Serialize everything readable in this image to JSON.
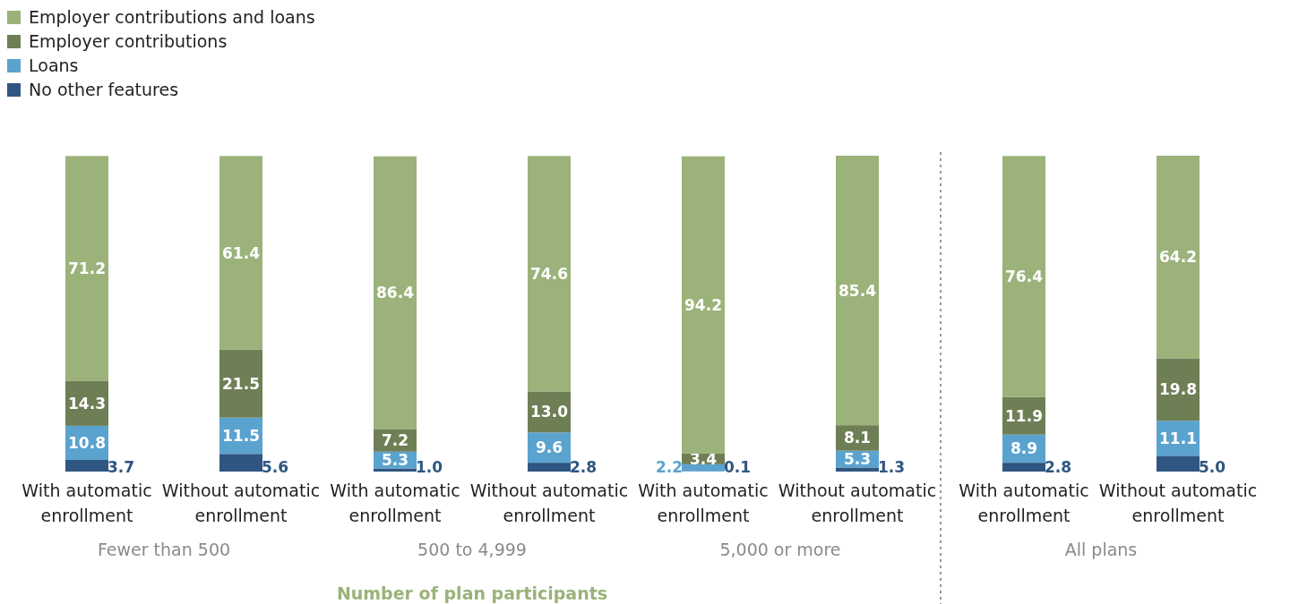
{
  "chart_data": {
    "type": "bar",
    "stacked": true,
    "xlabel": "Number of plan participants",
    "categories": [
      "With automatic enrollment",
      "Without automatic enrollment",
      "With automatic enrollment",
      "Without automatic enrollment",
      "With automatic enrollment",
      "Without automatic enrollment",
      "With automatic enrollment",
      "Without automatic enrollment"
    ],
    "annotations": [
      "Fewer than 500",
      "500 to 4,999",
      "5,000 or more",
      "All plans"
    ],
    "legend": "top left",
    "series": [
      {
        "name": "No other features",
        "color": "#2f5680",
        "values": [
          3.7,
          5.6,
          1.0,
          2.8,
          0.1,
          1.3,
          2.8,
          5.0
        ],
        "value_labels": [
          "3.7",
          "5.6",
          "1.0",
          "2.8",
          "0.1",
          "1.3",
          "2.8",
          "5.0"
        ]
      },
      {
        "name": "Loans",
        "color": "#5ba3cf",
        "values": [
          10.8,
          11.5,
          5.3,
          9.6,
          2.2,
          5.3,
          8.9,
          11.1
        ],
        "value_labels": [
          "10.8",
          "11.5",
          "5.3",
          "9.6",
          "2.2",
          "5.3",
          "8.9",
          "11.1"
        ]
      },
      {
        "name": "Employer contributions",
        "color": "#6e7e55",
        "values": [
          14.3,
          21.5,
          7.2,
          13.0,
          3.4,
          8.1,
          11.9,
          19.8
        ],
        "value_labels": [
          "14.3",
          "21.5",
          "7.2",
          "13.0",
          "3.4",
          "8.1",
          "11.9",
          "19.8"
        ]
      },
      {
        "name": "Employer contributions and loans",
        "color": "#9bb27a",
        "values": [
          71.2,
          61.4,
          86.4,
          74.6,
          94.2,
          85.4,
          76.4,
          64.2
        ],
        "value_labels": [
          "71.2",
          "61.4",
          "86.4",
          "74.6",
          "94.2",
          "85.4",
          "76.4",
          "64.2"
        ]
      }
    ]
  }
}
